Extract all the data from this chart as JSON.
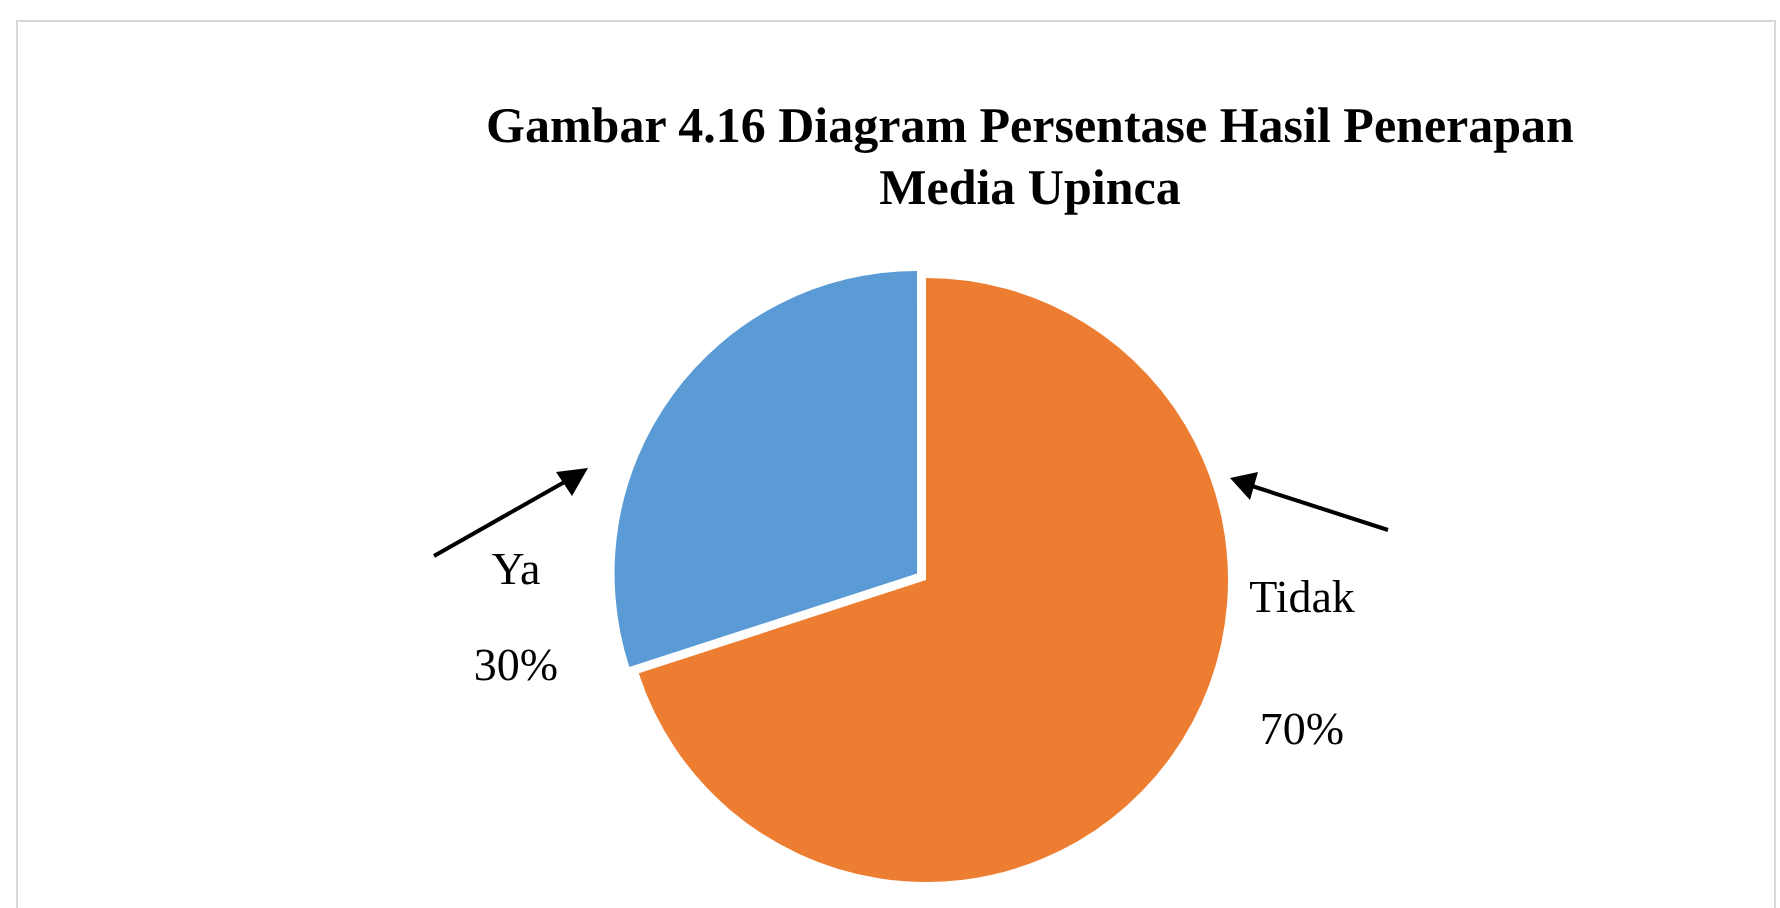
{
  "chart_data": {
    "type": "pie",
    "title": "Gambar 4.16 Diagram Persentase Hasil Penerapan Media Upinca",
    "categories": [
      "Tidak",
      "Ya"
    ],
    "values": [
      70,
      30
    ],
    "colors": [
      "#ed7d31",
      "#5b9bd5"
    ],
    "value_labels": [
      "70%",
      "30%"
    ],
    "legend": false
  }
}
